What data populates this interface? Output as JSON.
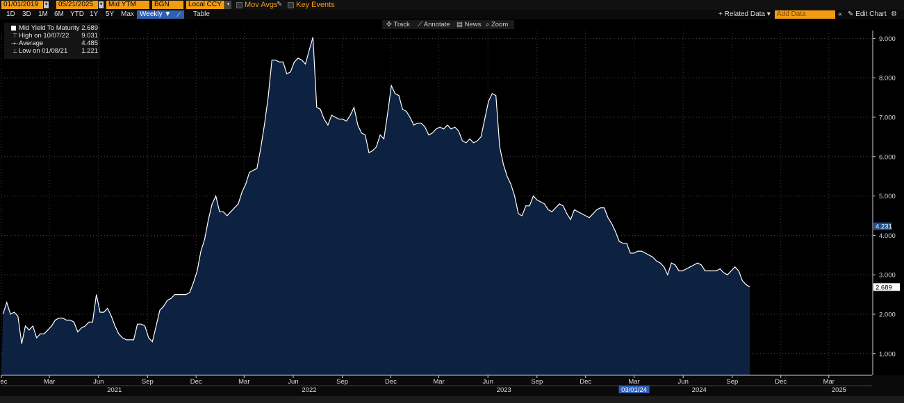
{
  "toolbar": {
    "start_date": "01/01/2019",
    "end_date": "05/21/2025",
    "field": "Mid YTM",
    "source": "BGN",
    "currency": "Local CCY",
    "mov_avgs": "Mov Avgs",
    "key_events": "Key Events",
    "ranges": [
      "1D",
      "3D",
      "1M",
      "6M",
      "YTD",
      "1Y",
      "5Y",
      "Max"
    ],
    "frequency": "Weekly",
    "table": "Table",
    "related_data": "Related Data",
    "add_data_placeholder": "Add Data",
    "edit_chart": "Edit Chart"
  },
  "tools": {
    "track": "Track",
    "annotate": "Annotate",
    "news": "News",
    "zoom": "Zoom"
  },
  "legend": [
    {
      "label": "Mid Yield To Maturity",
      "value": "2.689"
    },
    {
      "label": "High on 10/07/22",
      "value": "9.031"
    },
    {
      "label": "Average",
      "value": "4.485"
    },
    {
      "label": "Low on 01/08/21",
      "value": "1.221"
    }
  ],
  "colors": {
    "accent": "#f39c12",
    "area_fill": "#0c2240",
    "line": "#ffffff",
    "active_button": "#2f5fb3"
  },
  "chart_data": {
    "type": "area",
    "series": [
      {
        "name": "Mid Yield To Maturity",
        "x_start": "2020-12-04",
        "x_step_days": 7,
        "values": [
          2.0,
          2.3,
          2.0,
          2.05,
          1.95,
          1.25,
          1.7,
          1.6,
          1.7,
          1.4,
          1.5,
          1.5,
          1.6,
          1.7,
          1.85,
          1.9,
          1.9,
          1.85,
          1.85,
          1.8,
          1.55,
          1.65,
          1.7,
          1.8,
          1.8,
          2.5,
          2.05,
          2.05,
          2.15,
          1.95,
          1.7,
          1.5,
          1.4,
          1.35,
          1.35,
          1.35,
          1.75,
          1.75,
          1.7,
          1.4,
          1.3,
          1.7,
          2.1,
          2.2,
          2.35,
          2.4,
          2.5,
          2.5,
          2.5,
          2.5,
          2.55,
          2.8,
          3.1,
          3.6,
          3.9,
          4.4,
          4.8,
          5.0,
          4.6,
          4.6,
          4.5,
          4.6,
          4.7,
          4.8,
          5.1,
          5.3,
          5.6,
          5.65,
          5.7,
          6.2,
          6.8,
          7.5,
          8.45,
          8.45,
          8.4,
          8.4,
          8.1,
          8.15,
          8.4,
          8.5,
          8.45,
          8.35,
          8.7,
          9.031,
          7.25,
          7.2,
          6.95,
          6.8,
          7.05,
          7.0,
          6.95,
          6.95,
          6.9,
          7.05,
          7.25,
          6.8,
          6.6,
          6.55,
          6.1,
          6.15,
          6.25,
          6.55,
          6.45,
          7.1,
          7.8,
          7.6,
          7.55,
          7.2,
          7.15,
          7.0,
          6.8,
          6.85,
          6.85,
          6.75,
          6.55,
          6.6,
          6.7,
          6.75,
          6.7,
          6.8,
          6.7,
          6.75,
          6.65,
          6.4,
          6.35,
          6.45,
          6.35,
          6.4,
          6.5,
          6.95,
          7.4,
          7.6,
          7.55,
          6.25,
          5.8,
          5.5,
          5.3,
          5.0,
          4.55,
          4.5,
          4.75,
          4.75,
          5.0,
          4.9,
          4.85,
          4.8,
          4.65,
          4.6,
          4.7,
          4.8,
          4.75,
          4.55,
          4.4,
          4.65,
          4.6,
          4.55,
          4.5,
          4.45,
          4.55,
          4.65,
          4.7,
          4.7,
          4.45,
          4.3,
          4.1,
          3.85,
          3.8,
          3.8,
          3.55,
          3.55,
          3.6,
          3.6,
          3.55,
          3.5,
          3.45,
          3.35,
          3.3,
          3.2,
          3.0,
          3.3,
          3.25,
          3.1,
          3.1,
          3.15,
          3.2,
          3.25,
          3.3,
          3.25,
          3.1,
          3.1,
          3.1,
          3.1,
          3.15,
          3.05,
          3.0,
          3.1,
          3.2,
          3.1,
          2.85,
          2.75,
          2.689
        ]
      }
    ],
    "y_ticks": [
      "1.000",
      "2.000",
      "3.000",
      "4.000",
      "5.000",
      "6.000",
      "7.000",
      "8.000",
      "9.000"
    ],
    "ylim": [
      0.45,
      9.2
    ],
    "x_month_labels": [
      {
        "label": "Dec",
        "date": "2020-12-01"
      },
      {
        "label": "Mar",
        "date": "2021-03-01"
      },
      {
        "label": "Jun",
        "date": "2021-06-01"
      },
      {
        "label": "Sep",
        "date": "2021-09-01"
      },
      {
        "label": "Dec",
        "date": "2021-12-01"
      },
      {
        "label": "Mar",
        "date": "2022-03-01"
      },
      {
        "label": "Jun",
        "date": "2022-06-01"
      },
      {
        "label": "Sep",
        "date": "2022-09-01"
      },
      {
        "label": "Dec",
        "date": "2022-12-01"
      },
      {
        "label": "Mar",
        "date": "2023-03-01"
      },
      {
        "label": "Jun",
        "date": "2023-06-01"
      },
      {
        "label": "Sep",
        "date": "2023-09-01"
      },
      {
        "label": "Dec",
        "date": "2023-12-01"
      },
      {
        "label": "Mar",
        "date": "2024-03-01"
      },
      {
        "label": "Jun",
        "date": "2024-06-01"
      },
      {
        "label": "Sep",
        "date": "2024-09-01"
      },
      {
        "label": "Dec",
        "date": "2024-12-01"
      },
      {
        "label": "Mar",
        "date": "2025-03-01"
      }
    ],
    "x_year_labels": [
      {
        "label": "2021",
        "date": "2021-07-01"
      },
      {
        "label": "2022",
        "date": "2022-07-01"
      },
      {
        "label": "2023",
        "date": "2023-07-01"
      },
      {
        "label": "2024",
        "date": "2024-07-01"
      },
      {
        "label": "2025",
        "date": "2025-03-20"
      }
    ],
    "cursor_date_label": "03/01/24",
    "cursor_date": "2024-03-01",
    "markers": [
      {
        "label": "4.231",
        "value": 4.231
      },
      {
        "label": "2.689",
        "value": 2.689
      }
    ],
    "grid": true,
    "xlim": [
      "2020-12-01",
      "2025-05-21"
    ]
  }
}
